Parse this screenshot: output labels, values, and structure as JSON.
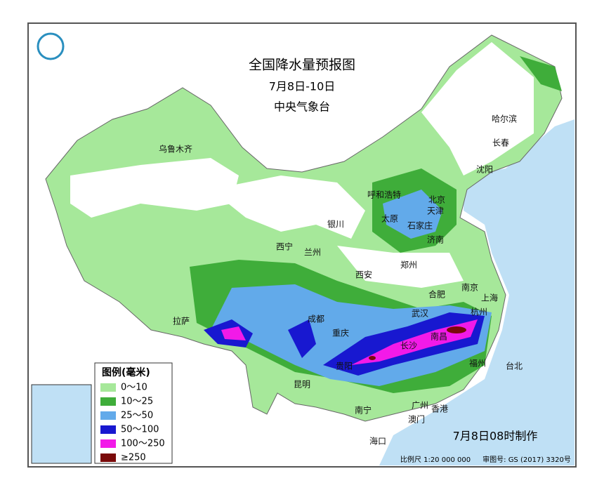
{
  "header": {
    "title": "全国降水量预报图",
    "date": "7月8日-10日",
    "agency": "中央气象台"
  },
  "legend": {
    "title": "图例(毫米)",
    "items": [
      {
        "label": "0～10",
        "color": "#a6e89a"
      },
      {
        "label": "10～25",
        "color": "#3fad3a"
      },
      {
        "label": "25～50",
        "color": "#62aaea"
      },
      {
        "label": "50～100",
        "color": "#1818d0"
      },
      {
        "label": "100～250",
        "color": "#f21ae8"
      },
      {
        "label": "≥250",
        "color": "#7a0a0a"
      }
    ]
  },
  "cities": [
    "乌鲁木齐",
    "哈尔滨",
    "长春",
    "沈阳",
    "呼和浩特",
    "北京",
    "天津",
    "太原",
    "石家庄",
    "银川",
    "西宁",
    "兰州",
    "济南",
    "郑州",
    "西安",
    "合肥",
    "南京",
    "上海",
    "杭州",
    "武汉",
    "成都",
    "重庆",
    "拉萨",
    "长沙",
    "南昌",
    "贵阳",
    "福州",
    "台北",
    "昆明",
    "南宁",
    "广州",
    "香港",
    "澳门",
    "海口"
  ],
  "footer": {
    "issued": "7月8日08时制作",
    "scale": "比例尺 1:20 000 000",
    "approval": "审图号: GS (2017) 3320号"
  }
}
